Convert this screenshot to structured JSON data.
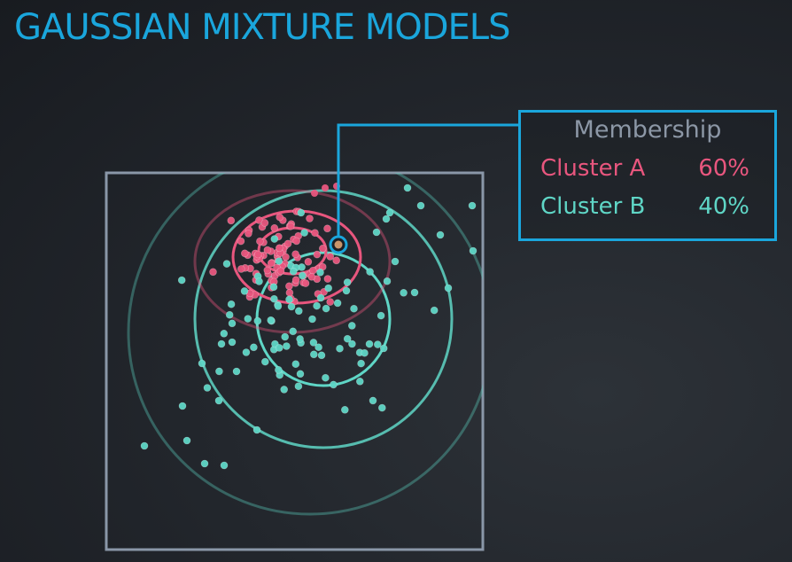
{
  "title": "GAUSSIAN MIXTURE MODELS",
  "colors": {
    "title": "#1aa6dc",
    "cluster_a": "#e8567e",
    "cluster_b": "#5fd6c6",
    "callout": "#1aa6dc",
    "frame": "#8a97a8",
    "heading": "#8c97a6"
  },
  "membership": {
    "heading": "Membership",
    "rows": [
      {
        "label": "Cluster A",
        "value": "60%"
      },
      {
        "label": "Cluster B",
        "value": "40%"
      }
    ]
  }
}
